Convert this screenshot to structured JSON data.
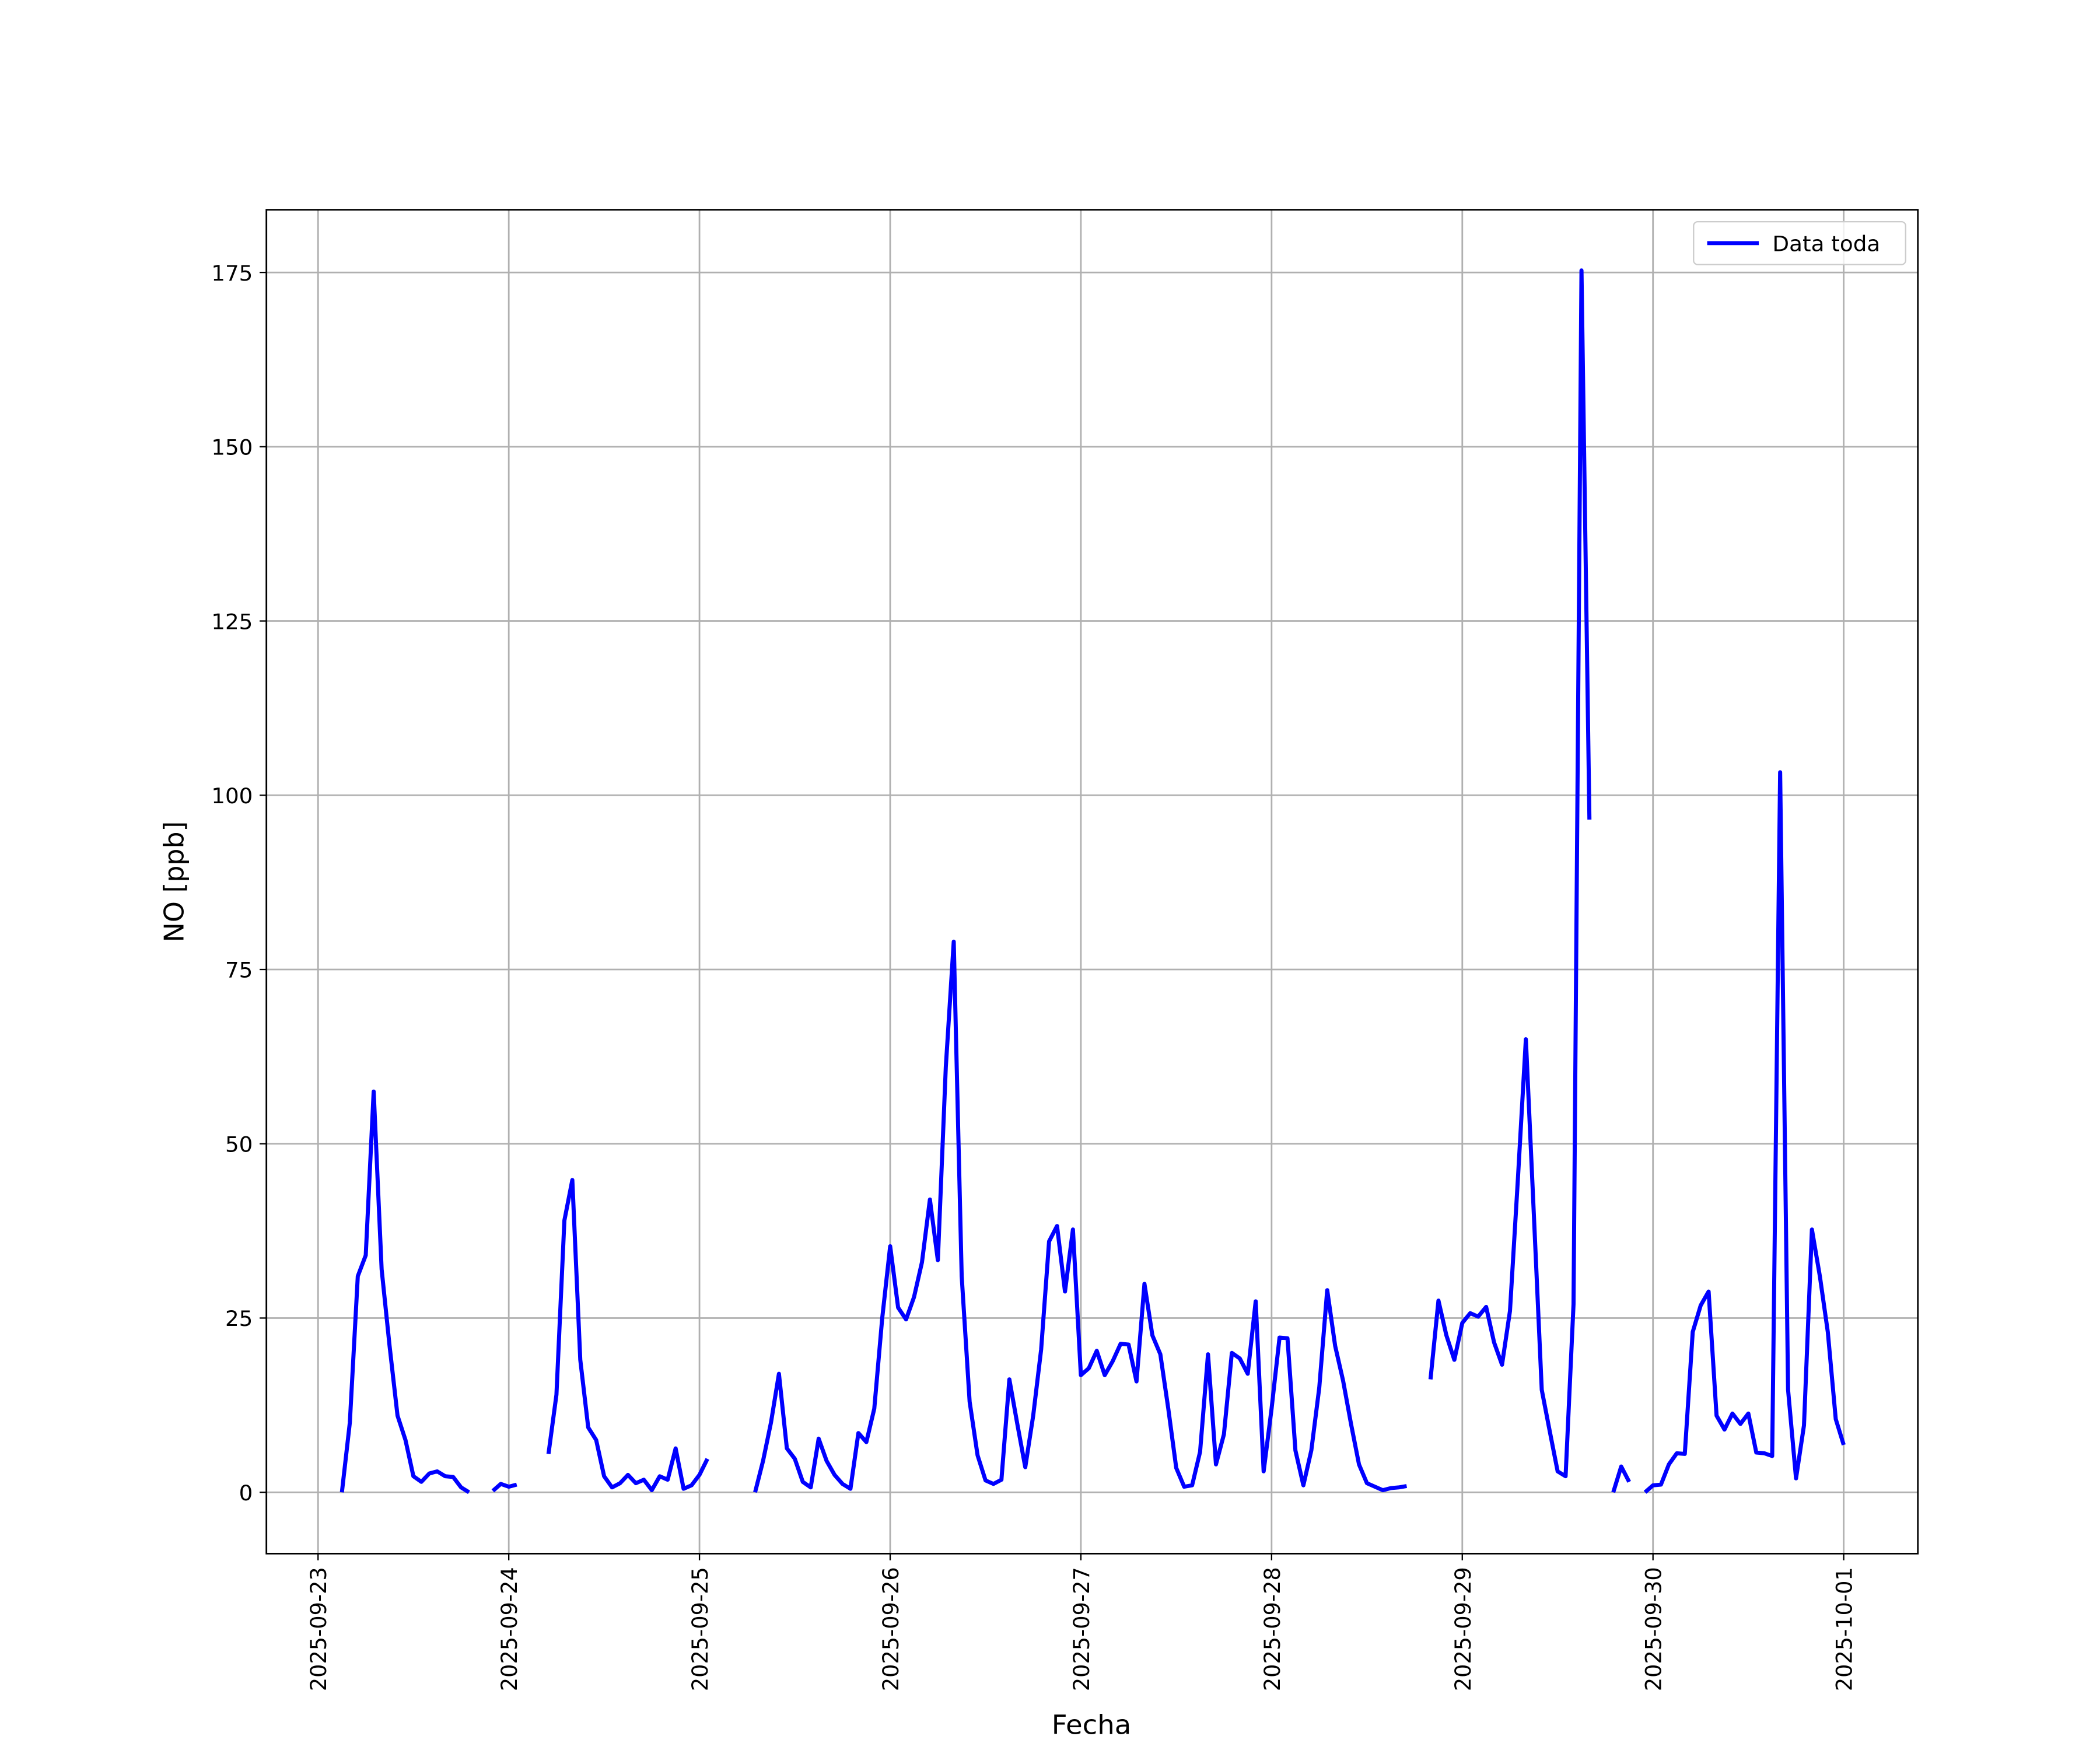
{
  "chart_data": {
    "type": "line",
    "xlabel": "Fecha",
    "ylabel": "NO [ppb]",
    "x": [
      "2025-09-23 03:00",
      "2025-09-23 04:00",
      "2025-09-23 05:00",
      "2025-09-23 06:00",
      "2025-09-23 07:00",
      "2025-09-23 08:00",
      "2025-09-23 09:00",
      "2025-09-23 10:00",
      "2025-09-23 11:00",
      "2025-09-23 12:00",
      "2025-09-23 13:00",
      "2025-09-23 14:00",
      "2025-09-23 15:00",
      "2025-09-23 16:00",
      "2025-09-23 17:00",
      "2025-09-23 18:00",
      "2025-09-23 19:00",
      "2025-09-23 20:00",
      "2025-09-23 21:00",
      "2025-09-23 22:00",
      "2025-09-23 23:00",
      "2025-09-24 00:00",
      "2025-09-24 01:00",
      "2025-09-24 02:00",
      "2025-09-24 03:00",
      "2025-09-24 04:00",
      "2025-09-24 05:00",
      "2025-09-24 06:00",
      "2025-09-24 07:00",
      "2025-09-24 08:00",
      "2025-09-24 09:00",
      "2025-09-24 10:00",
      "2025-09-24 11:00",
      "2025-09-24 12:00",
      "2025-09-24 13:00",
      "2025-09-24 14:00",
      "2025-09-24 15:00",
      "2025-09-24 16:00",
      "2025-09-24 17:00",
      "2025-09-24 18:00",
      "2025-09-24 19:00",
      "2025-09-24 20:00",
      "2025-09-24 21:00",
      "2025-09-24 22:00",
      "2025-09-24 23:00",
      "2025-09-25 00:00",
      "2025-09-25 01:00",
      "2025-09-25 02:00",
      "2025-09-25 03:00",
      "2025-09-25 04:00",
      "2025-09-25 05:00",
      "2025-09-25 06:00",
      "2025-09-25 07:00",
      "2025-09-25 08:00",
      "2025-09-25 09:00",
      "2025-09-25 10:00",
      "2025-09-25 11:00",
      "2025-09-25 12:00",
      "2025-09-25 13:00",
      "2025-09-25 14:00",
      "2025-09-25 15:00",
      "2025-09-25 16:00",
      "2025-09-25 17:00",
      "2025-09-25 18:00",
      "2025-09-25 19:00",
      "2025-09-25 20:00",
      "2025-09-25 21:00",
      "2025-09-25 22:00",
      "2025-09-25 23:00",
      "2025-09-26 00:00",
      "2025-09-26 01:00",
      "2025-09-26 02:00",
      "2025-09-26 03:00",
      "2025-09-26 04:00",
      "2025-09-26 05:00",
      "2025-09-26 06:00",
      "2025-09-26 07:00",
      "2025-09-26 08:00",
      "2025-09-26 09:00",
      "2025-09-26 10:00",
      "2025-09-26 11:00",
      "2025-09-26 12:00",
      "2025-09-26 13:00",
      "2025-09-26 14:00",
      "2025-09-26 15:00",
      "2025-09-26 16:00",
      "2025-09-26 17:00",
      "2025-09-26 18:00",
      "2025-09-26 19:00",
      "2025-09-26 20:00",
      "2025-09-26 21:00",
      "2025-09-26 22:00",
      "2025-09-26 23:00",
      "2025-09-27 00:00",
      "2025-09-27 01:00",
      "2025-09-27 02:00",
      "2025-09-27 03:00",
      "2025-09-27 04:00",
      "2025-09-27 05:00",
      "2025-09-27 06:00",
      "2025-09-27 07:00",
      "2025-09-27 08:00",
      "2025-09-27 09:00",
      "2025-09-27 10:00",
      "2025-09-27 11:00",
      "2025-09-27 12:00",
      "2025-09-27 13:00",
      "2025-09-27 14:00",
      "2025-09-27 15:00",
      "2025-09-27 16:00",
      "2025-09-27 17:00",
      "2025-09-27 18:00",
      "2025-09-27 19:00",
      "2025-09-27 20:00",
      "2025-09-27 21:00",
      "2025-09-27 22:00",
      "2025-09-27 23:00",
      "2025-09-28 00:00",
      "2025-09-28 01:00",
      "2025-09-28 02:00",
      "2025-09-28 03:00",
      "2025-09-28 04:00",
      "2025-09-28 05:00",
      "2025-09-28 06:00",
      "2025-09-28 07:00",
      "2025-09-28 08:00",
      "2025-09-28 09:00",
      "2025-09-28 10:00",
      "2025-09-28 11:00",
      "2025-09-28 12:00",
      "2025-09-28 13:00",
      "2025-09-28 14:00",
      "2025-09-28 15:00",
      "2025-09-28 16:00",
      "2025-09-28 17:00",
      "2025-09-28 18:00",
      "2025-09-28 19:00",
      "2025-09-28 20:00",
      "2025-09-28 21:00",
      "2025-09-28 22:00",
      "2025-09-28 23:00",
      "2025-09-29 00:00",
      "2025-09-29 01:00",
      "2025-09-29 02:00",
      "2025-09-29 03:00",
      "2025-09-29 04:00",
      "2025-09-29 05:00",
      "2025-09-29 06:00",
      "2025-09-29 07:00",
      "2025-09-29 08:00",
      "2025-09-29 09:00",
      "2025-09-29 10:00",
      "2025-09-29 11:00",
      "2025-09-29 12:00",
      "2025-09-29 13:00",
      "2025-09-29 14:00",
      "2025-09-29 15:00",
      "2025-09-29 16:00",
      "2025-09-29 17:00",
      "2025-09-29 18:00",
      "2025-09-29 19:00",
      "2025-09-29 20:00",
      "2025-09-29 21:00",
      "2025-09-29 22:00",
      "2025-09-29 23:00",
      "2025-09-30 00:00",
      "2025-09-30 01:00",
      "2025-09-30 02:00",
      "2025-09-30 03:00",
      "2025-09-30 04:00",
      "2025-09-30 05:00",
      "2025-09-30 06:00",
      "2025-09-30 07:00",
      "2025-09-30 08:00",
      "2025-09-30 09:00",
      "2025-09-30 10:00",
      "2025-09-30 11:00",
      "2025-09-30 12:00",
      "2025-09-30 13:00",
      "2025-09-30 14:00",
      "2025-09-30 15:00",
      "2025-09-30 16:00",
      "2025-09-30 17:00",
      "2025-09-30 18:00",
      "2025-09-30 19:00",
      "2025-09-30 20:00",
      "2025-09-30 21:00",
      "2025-09-30 22:00",
      "2025-09-30 23:00",
      "2025-10-01 00:00"
    ],
    "series": [
      {
        "name": "Data toda",
        "color": "#0000ff",
        "values": [
          0,
          10,
          31,
          34,
          57.5,
          32,
          21,
          11,
          7.5,
          2.3,
          1.5,
          2.7,
          3,
          2.3,
          2.2,
          0.7,
          0,
          null,
          null,
          0.2,
          1.2,
          0.8,
          1.1,
          null,
          null,
          null,
          5.5,
          14,
          39,
          44.8,
          19,
          9.3,
          7.5,
          2.3,
          0.7,
          1.3,
          2.5,
          1.3,
          1.8,
          0.3,
          2.3,
          1.8,
          6.3,
          0.5,
          1,
          2.5,
          4.8,
          null,
          null,
          null,
          null,
          null,
          0,
          4.5,
          10,
          17,
          6.3,
          4.8,
          1.5,
          0.7,
          7.7,
          4.5,
          2.5,
          1.2,
          0.5,
          8.5,
          7.2,
          12,
          25,
          35.3,
          26.5,
          24.8,
          28,
          33,
          42,
          33.3,
          61,
          79,
          31,
          13,
          5.3,
          1.7,
          1.2,
          1.8,
          16.2,
          9.8,
          3.6,
          11,
          20.5,
          36,
          38.2,
          28.8,
          37.7,
          16.8,
          17.8,
          20.3,
          16.8,
          18.8,
          21.3,
          21.2,
          15.9,
          29.9,
          22.5,
          19.8,
          12,
          3.5,
          0.8,
          1,
          5.8,
          19.8,
          4,
          8.3,
          20,
          19.2,
          17,
          27.4,
          3,
          12,
          22.2,
          22.1,
          6,
          1,
          6,
          15,
          29,
          21,
          16,
          9.8,
          4,
          1.3,
          0.8,
          0.3,
          0.6,
          0.7,
          0.9,
          null,
          null,
          16.2,
          27.5,
          22.5,
          19,
          24.3,
          25.7,
          25.2,
          26.6,
          21.5,
          18.3,
          26,
          45,
          65,
          40,
          14.7,
          8.8,
          3,
          2.3,
          27,
          175.3,
          96.5,
          null,
          null,
          0,
          3.7,
          1.5,
          null,
          0,
          1,
          1.1,
          4,
          5.6,
          5.5,
          23,
          26.8,
          28.8,
          11,
          9,
          11.3,
          9.8,
          11.3,
          5.7,
          5.6,
          5.2,
          103.3,
          14.7,
          2,
          9.6,
          37.7,
          31,
          23,
          10.5,
          6.8
        ]
      }
    ],
    "xlim": [
      "2025-09-22 17:30",
      "2025-10-01 09:20"
    ],
    "xticks": [
      "2025-09-23",
      "2025-09-24",
      "2025-09-25",
      "2025-09-26",
      "2025-09-27",
      "2025-09-28",
      "2025-09-29",
      "2025-09-30",
      "2025-10-01"
    ],
    "ylim": [
      -8.8,
      184
    ],
    "yticks": [
      0,
      25,
      50,
      75,
      100,
      125,
      150,
      175
    ],
    "grid": true,
    "legend": "upper right"
  }
}
